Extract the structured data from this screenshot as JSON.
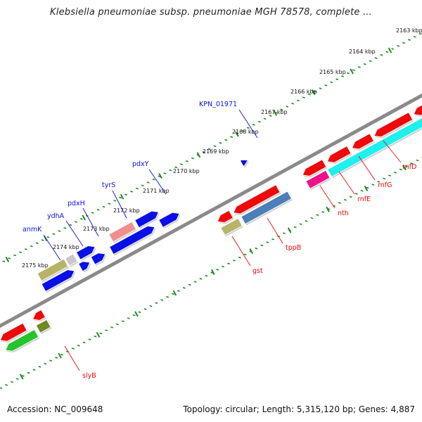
{
  "title": "Klebsiella pneumoniae subsp. pneumoniae MGH 78578, complete ...",
  "footer": {
    "accession": "Accession: NC_009648",
    "stats": "Topology: circular; Length: 5,315,120 bp; Genes: 4,887"
  },
  "colors": {
    "blue": "#0a10e6",
    "red": "#ee0a0a",
    "cyan": "#1ff0ee",
    "pink": "#f08e8e",
    "khaki": "#b7b46a",
    "grey": "#c8c8c8",
    "steel": "#4a7fb8",
    "magenta": "#f0108a",
    "olive": "#6f8a22",
    "green": "#24c42a",
    "backbone": "#8a8a8a",
    "ticks": "#1e8a1e"
  },
  "ticks": [
    {
      "label": "2163 kbp"
    },
    {
      "label": "2164 kbp"
    },
    {
      "label": "2165 kbp"
    },
    {
      "label": "2166 kbp"
    },
    {
      "label": "2167 kbp"
    },
    {
      "label": "2168 kbp"
    },
    {
      "label": "2169 kbp"
    },
    {
      "label": "2170 kbp"
    },
    {
      "label": "2171 kbp"
    },
    {
      "label": "2172 kbp"
    },
    {
      "label": "2173 kbp"
    },
    {
      "label": "2174 kbp"
    },
    {
      "label": "2175 kbp"
    }
  ],
  "gene_labels": [
    {
      "name": "anmK",
      "strand": "forward"
    },
    {
      "name": "ydhA",
      "strand": "forward"
    },
    {
      "name": "pdxH",
      "strand": "forward"
    },
    {
      "name": "tyrS",
      "strand": "forward"
    },
    {
      "name": "pdxY",
      "strand": "forward"
    },
    {
      "name": "KPN_01971",
      "strand": "forward"
    },
    {
      "name": "gst",
      "strand": "reverse"
    },
    {
      "name": "tppB",
      "strand": "reverse"
    },
    {
      "name": "nth",
      "strand": "reverse"
    },
    {
      "name": "rnfE",
      "strand": "reverse"
    },
    {
      "name": "rnfG",
      "strand": "reverse"
    },
    {
      "name": "rnfD",
      "strand": "reverse"
    },
    {
      "name": "slyB",
      "strand": "reverse"
    }
  ]
}
